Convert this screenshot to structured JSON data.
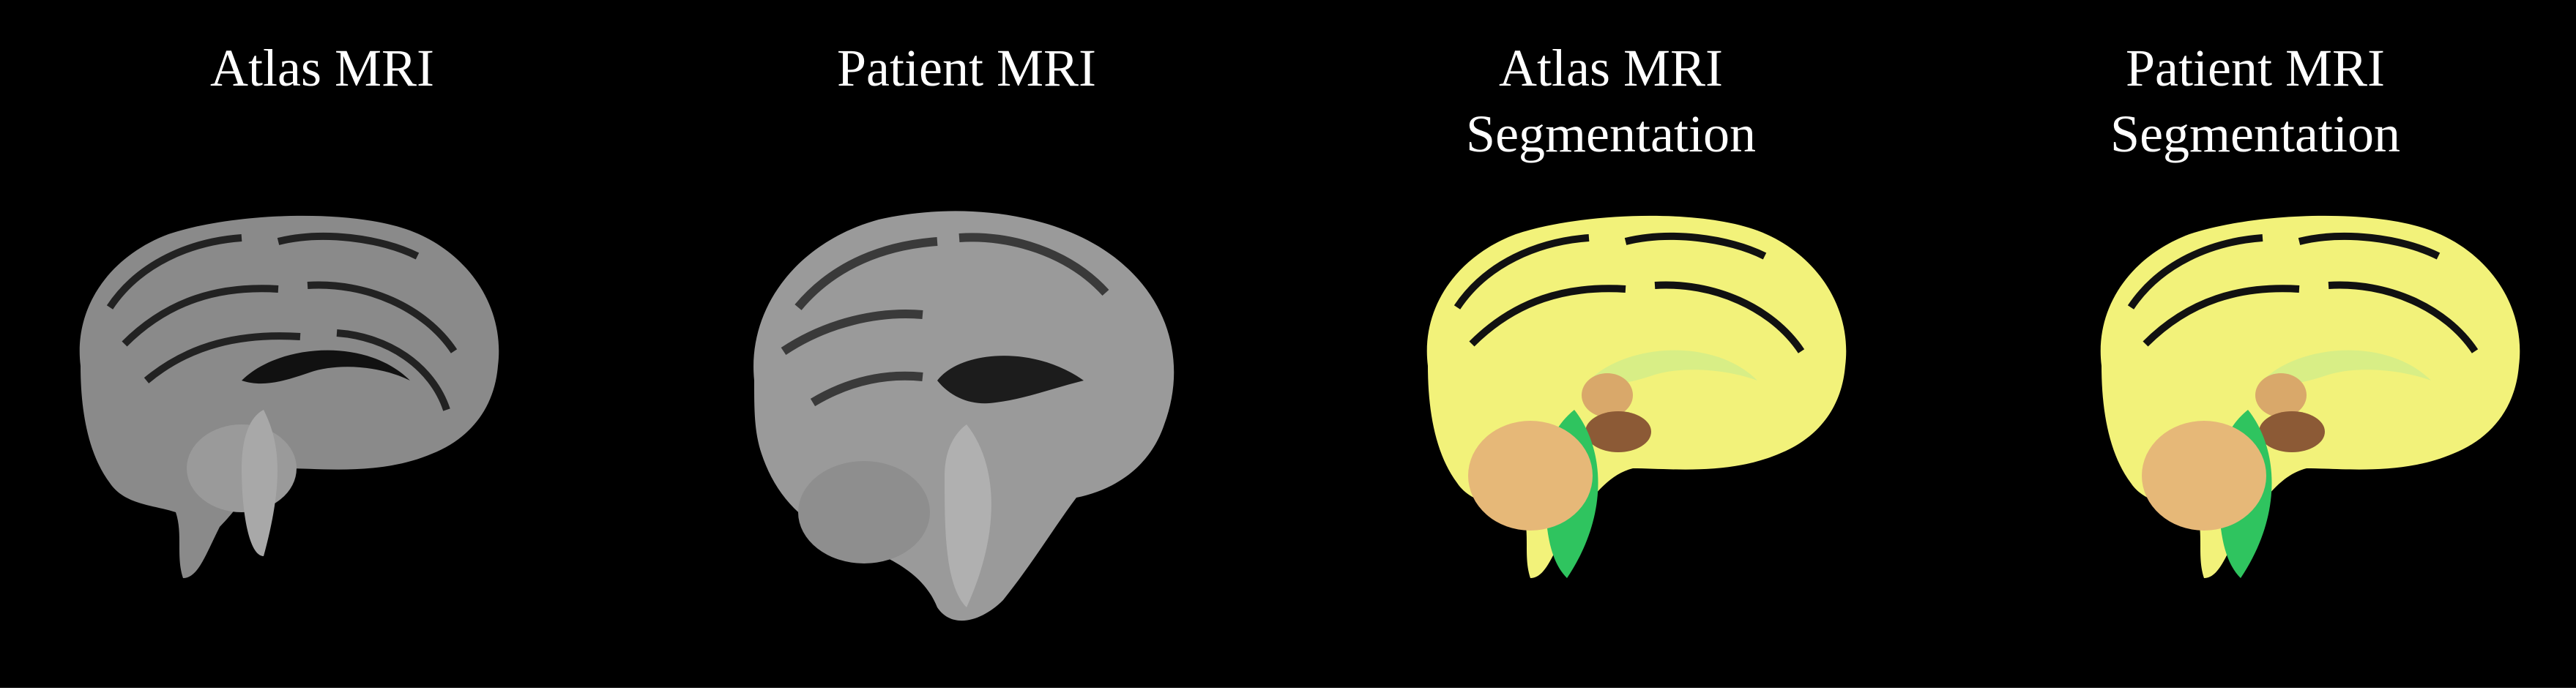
{
  "panels": [
    {
      "id": "atlas-mri",
      "lines": [
        "Atlas MRI"
      ],
      "kind": "mri",
      "tone": "#8a8a8a"
    },
    {
      "id": "patient-mri",
      "lines": [
        "Patient MRI"
      ],
      "kind": "mri",
      "tone": "#9a9a9a"
    },
    {
      "id": "atlas-segmentation",
      "lines": [
        "Atlas MRI",
        "Segmentation"
      ],
      "kind": "seg"
    },
    {
      "id": "patient-segmentation",
      "lines": [
        "Patient MRI",
        "Segmentation"
      ],
      "kind": "seg"
    }
  ],
  "colors": {
    "background": "#000000",
    "cortex": "#f2f27a",
    "white_matter": "#e6f08a",
    "thalamus": "#d9a86a",
    "brainstem_light": "#a8d878",
    "brainstem": "#2fc45f",
    "cerebellum": "#e6b878",
    "midbrain": "#8c5a36"
  }
}
